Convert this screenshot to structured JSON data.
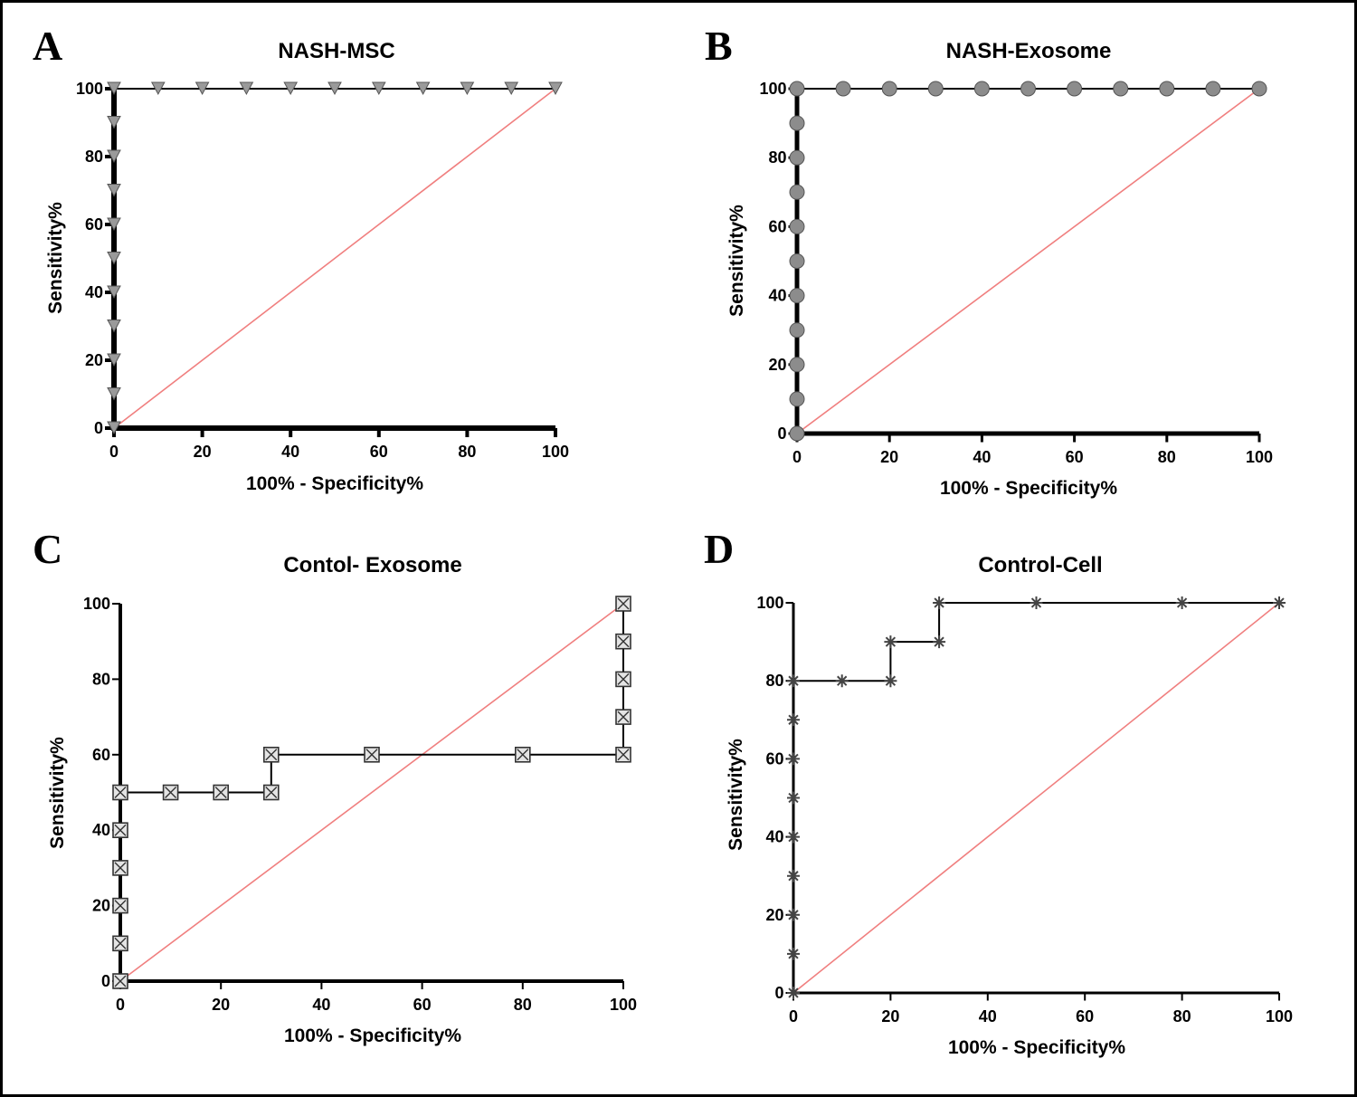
{
  "chart_data": [
    {
      "panel": "A",
      "type": "line",
      "title": "NASH-MSC",
      "xlabel": "100% - Specificity%",
      "ylabel": "Sensitivity%",
      "xlim": [
        0,
        100
      ],
      "ylim": [
        0,
        100
      ],
      "xticks": [
        0,
        20,
        40,
        60,
        80,
        100
      ],
      "yticks": [
        0,
        20,
        40,
        60,
        80,
        100
      ],
      "grid": false,
      "series": [
        {
          "marker": "triangle-down",
          "line_color": "#000000",
          "marker_fill": "#9a9a9a",
          "x": [
            0,
            0,
            0,
            0,
            0,
            0,
            0,
            0,
            0,
            0,
            0,
            10,
            20,
            30,
            40,
            50,
            60,
            70,
            80,
            90,
            100
          ],
          "y": [
            0,
            10,
            20,
            30,
            40,
            50,
            60,
            70,
            80,
            90,
            100,
            100,
            100,
            100,
            100,
            100,
            100,
            100,
            100,
            100,
            100
          ]
        }
      ],
      "reference_line": {
        "x": [
          0,
          100
        ],
        "y": [
          0,
          100
        ],
        "color": "#f07f7f"
      }
    },
    {
      "panel": "B",
      "type": "line",
      "title": "NASH-Exosome",
      "xlabel": "100% - Specificity%",
      "ylabel": "Sensitivity%",
      "xlim": [
        0,
        100
      ],
      "ylim": [
        0,
        100
      ],
      "xticks": [
        0,
        20,
        40,
        60,
        80,
        100
      ],
      "yticks": [
        0,
        20,
        40,
        60,
        80,
        100
      ],
      "grid": false,
      "series": [
        {
          "marker": "circle",
          "line_color": "#000000",
          "marker_fill": "#8c8c8c",
          "x": [
            0,
            0,
            0,
            0,
            0,
            0,
            0,
            0,
            0,
            0,
            0,
            10,
            20,
            30,
            40,
            50,
            60,
            70,
            80,
            90,
            100
          ],
          "y": [
            0,
            10,
            20,
            30,
            40,
            50,
            60,
            70,
            80,
            90,
            100,
            100,
            100,
            100,
            100,
            100,
            100,
            100,
            100,
            100,
            100
          ]
        }
      ],
      "reference_line": {
        "x": [
          0,
          100
        ],
        "y": [
          0,
          100
        ],
        "color": "#f07f7f"
      }
    },
    {
      "panel": "C",
      "type": "line",
      "title": "Contol- Exosome",
      "xlabel": "100% - Specificity%",
      "ylabel": "Sensitivity%",
      "xlim": [
        0,
        100
      ],
      "ylim": [
        0,
        100
      ],
      "xticks": [
        0,
        20,
        40,
        60,
        80,
        100
      ],
      "yticks": [
        0,
        20,
        40,
        60,
        80,
        100
      ],
      "grid": false,
      "series": [
        {
          "marker": "square-x",
          "line_color": "#000000",
          "marker_fill": "#e4e4e4",
          "x": [
            0,
            0,
            0,
            0,
            0,
            0,
            10,
            20,
            30,
            30,
            50,
            80,
            100,
            100,
            100,
            100,
            100
          ],
          "y": [
            0,
            10,
            20,
            30,
            40,
            50,
            50,
            50,
            50,
            60,
            60,
            60,
            60,
            70,
            80,
            90,
            100
          ]
        }
      ],
      "reference_line": {
        "x": [
          0,
          100
        ],
        "y": [
          0,
          100
        ],
        "color": "#f07f7f"
      }
    },
    {
      "panel": "D",
      "type": "line",
      "title": "Control-Cell",
      "xlabel": "100% - Specificity%",
      "ylabel": "Sensitivity%",
      "xlim": [
        0,
        100
      ],
      "ylim": [
        0,
        100
      ],
      "xticks": [
        0,
        20,
        40,
        60,
        80,
        100
      ],
      "yticks": [
        0,
        20,
        40,
        60,
        80,
        100
      ],
      "grid": false,
      "series": [
        {
          "marker": "asterisk",
          "line_color": "#000000",
          "marker_fill": "#444444",
          "x": [
            0,
            0,
            0,
            0,
            0,
            0,
            0,
            0,
            0,
            10,
            20,
            20,
            30,
            30,
            50,
            80,
            100
          ],
          "y": [
            0,
            10,
            20,
            30,
            40,
            50,
            60,
            70,
            80,
            80,
            80,
            90,
            90,
            100,
            100,
            100,
            100
          ]
        }
      ],
      "reference_line": {
        "x": [
          0,
          100
        ],
        "y": [
          0,
          100
        ],
        "color": "#f07f7f"
      }
    }
  ]
}
